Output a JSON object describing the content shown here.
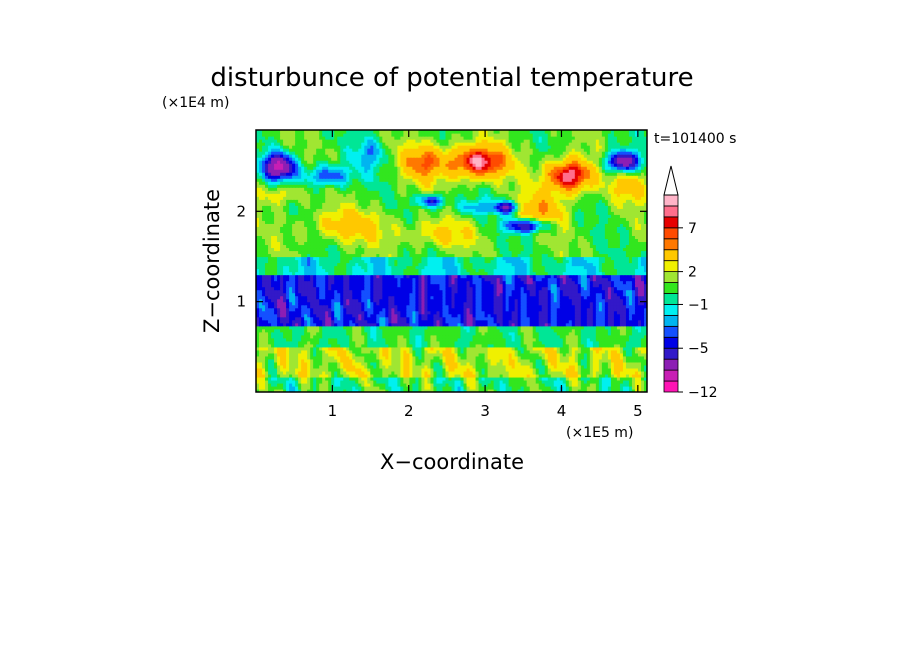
{
  "chart_data": {
    "type": "heatmap",
    "title": "disturbunce of potential temperature",
    "xlabel": "X−coordinate",
    "ylabel": "Z−coordinate",
    "x_unit": "(×1E5 m)",
    "y_unit": "(×1E4 m)",
    "time_label": "t=101400 s",
    "xlim": [
      0,
      5.12
    ],
    "ylim": [
      0,
      2.9
    ],
    "x_ticks": [
      1,
      2,
      3,
      4,
      5
    ],
    "y_ticks": [
      1,
      2
    ],
    "colorbar": {
      "levels": [
        -12,
        -10,
        -8,
        -6,
        -5,
        -4,
        -3,
        -2,
        -1,
        0,
        1,
        2,
        3,
        5,
        6,
        7,
        8,
        9,
        10
      ],
      "labeled_levels": [
        7,
        2,
        -1,
        -5,
        -12
      ],
      "colors": [
        "#ff14b4",
        "#c81eb4",
        "#8c1eb4",
        "#3219c8",
        "#0000e6",
        "#1450ff",
        "#00b4f0",
        "#00f0f0",
        "#00e696",
        "#32e61e",
        "#a0e632",
        "#f0f000",
        "#ffc800",
        "#ff7800",
        "#ff4b00",
        "#e60000",
        "#ff6e8c",
        "#ffb4c8",
        "#ffffff"
      ],
      "extend": "max"
    },
    "grid": false,
    "legend": "right"
  },
  "colors": {
    "background": "#ffffff",
    "frame": "#000000"
  }
}
